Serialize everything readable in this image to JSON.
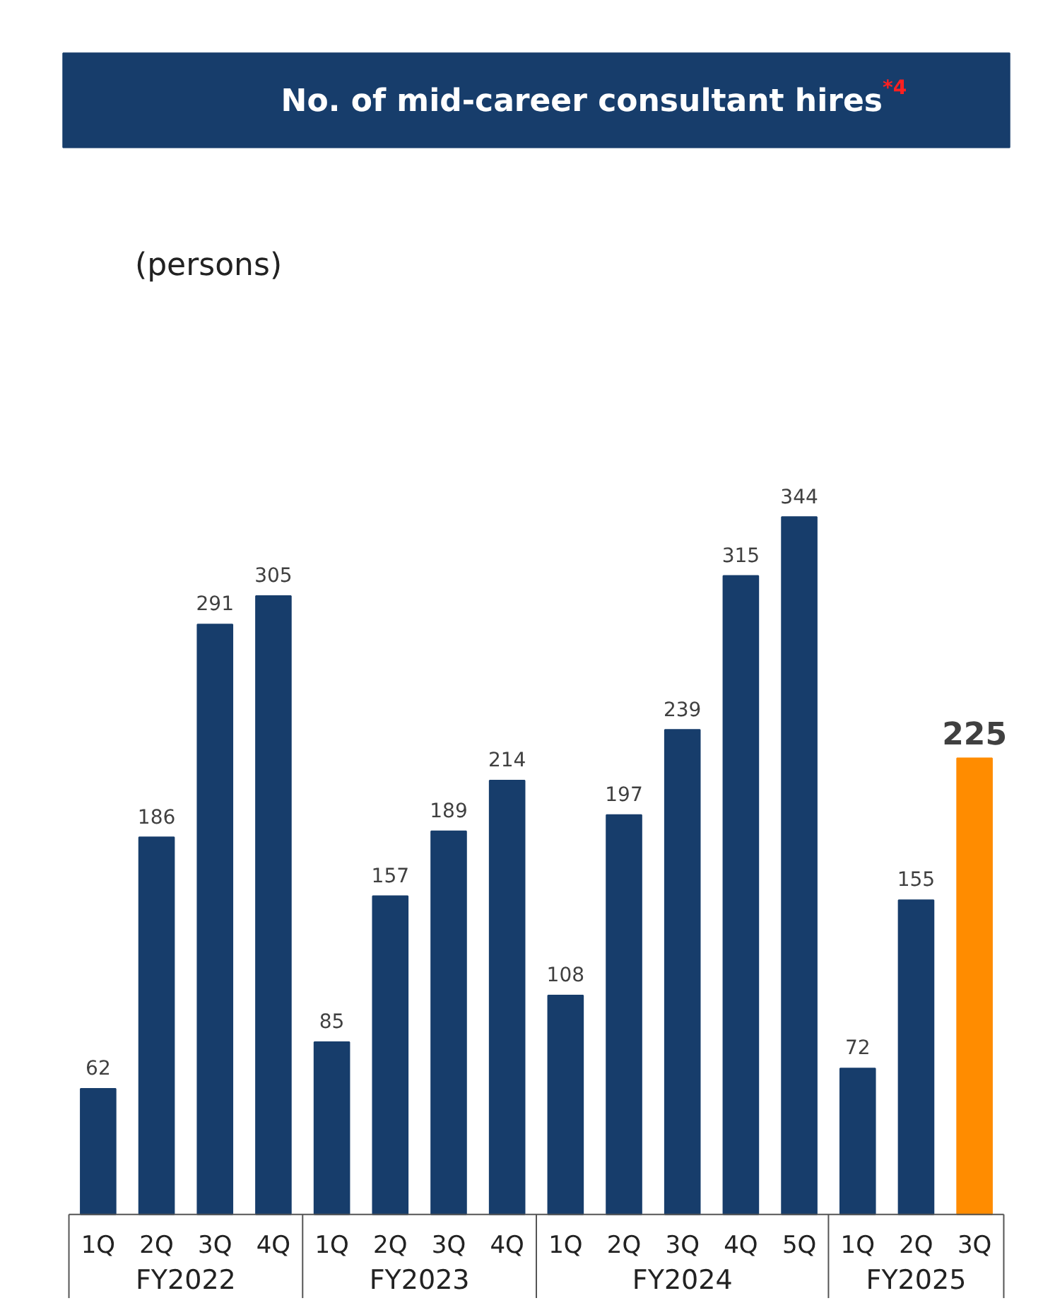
{
  "chart_data": {
    "type": "bar",
    "title": "No. of mid-career consultant hires$^{*4}$",
    "categories": [
      "1Q",
      "2Q",
      "3Q",
      "4Q",
      "1Q",
      "2Q",
      "3Q",
      "4Q",
      "1Q",
      "2Q",
      "3Q",
      "4Q",
      "5Q",
      "1Q",
      "2Q",
      "3Q"
    ],
    "values": [
      62,
      186,
      291,
      305,
      85,
      157,
      189,
      214,
      108,
      197,
      239,
      315,
      344,
      72,
      155,
      225
    ],
    "colors": [
      "#173d6b",
      "#173d6b",
      "#173d6b",
      "#173d6b",
      "#173d6b",
      "#173d6b",
      "#173d6b",
      "#173d6b",
      "#173d6b",
      "#173d6b",
      "#173d6b",
      "#173d6b",
      "#173d6b",
      "#173d6b",
      "#173d6b",
      "#ff8c00"
    ],
    "annotations": [
      "(persons)",
      "FY2022",
      "FY2023",
      "FY2024",
      "FY2025"
    ],
    "data_labels": true
  }
}
